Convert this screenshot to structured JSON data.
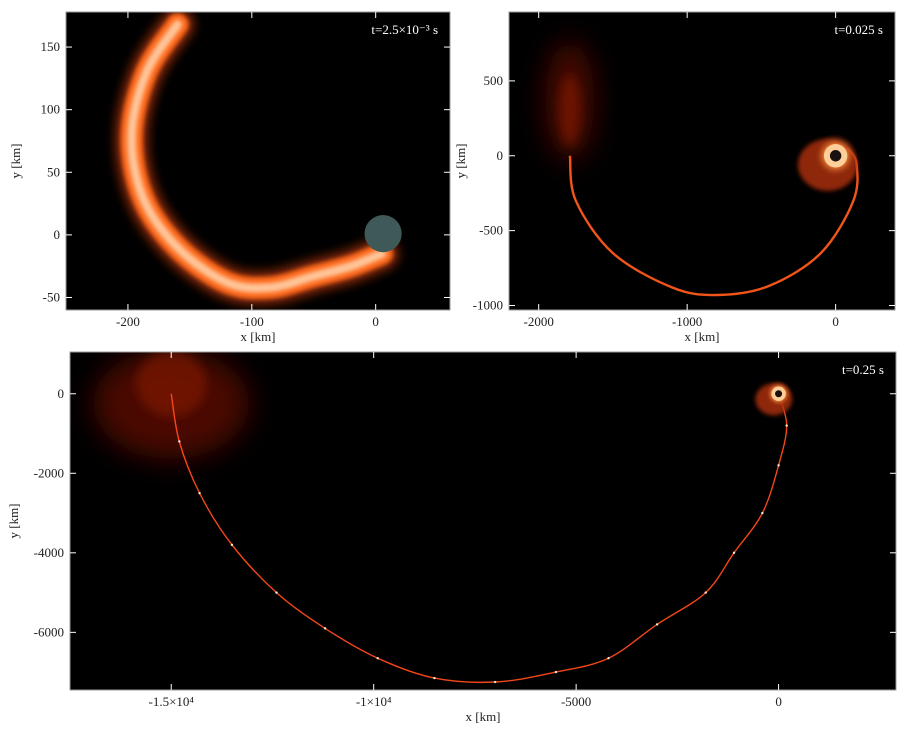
{
  "chart_data": [
    {
      "type": "heatmap",
      "panel": "top-left",
      "annotation": "t=2.5×10⁻³ s",
      "xlabel": "x [km]",
      "ylabel": "y [km]",
      "xlim": [
        -250,
        60
      ],
      "ylim": [
        -60,
        178
      ],
      "x_ticks": [
        -200,
        -100,
        0
      ],
      "x_tick_labels": [
        "-200",
        "-100",
        "0"
      ],
      "y_ticks": [
        -50,
        0,
        50,
        100,
        150
      ],
      "y_tick_labels": [
        "-50",
        "0",
        "50",
        "100",
        "150"
      ],
      "black_hole": {
        "x": 6,
        "y": 1,
        "radius_km": 15,
        "color": "#3f5858"
      },
      "stream_path": [
        [
          -160,
          168
        ],
        [
          -185,
          130
        ],
        [
          -197,
          80
        ],
        [
          -188,
          30
        ],
        [
          -160,
          -10
        ],
        [
          -120,
          -38
        ],
        [
          -85,
          -42
        ],
        [
          -50,
          -33
        ],
        [
          -20,
          -25
        ],
        [
          5,
          -15
        ]
      ],
      "stream_color": "#ff6a1a",
      "grid": false
    },
    {
      "type": "heatmap",
      "panel": "top-right",
      "annotation": "t=0.025 s",
      "xlabel": "x [km]",
      "ylabel": "y [km]",
      "xlim": [
        -2200,
        400
      ],
      "ylim": [
        -1030,
        960
      ],
      "x_ticks": [
        -2000,
        -1000,
        0
      ],
      "x_tick_labels": [
        "-2000",
        "-1000",
        "0"
      ],
      "y_ticks": [
        -1000,
        -500,
        0,
        500
      ],
      "y_tick_labels": [
        "-1000",
        "-500",
        "0",
        "500"
      ],
      "black_hole": {
        "x": 0,
        "y": 0
      },
      "stream_path": [
        [
          -1790,
          0
        ],
        [
          -1750,
          -300
        ],
        [
          -1500,
          -650
        ],
        [
          -1100,
          -880
        ],
        [
          -800,
          -930
        ],
        [
          -450,
          -870
        ],
        [
          -100,
          -650
        ],
        [
          120,
          -300
        ],
        [
          140,
          -50
        ],
        [
          80,
          50
        ]
      ],
      "stream_color": "#ff5a1a",
      "grid": false
    },
    {
      "type": "heatmap",
      "panel": "bottom",
      "annotation": "t=0.25 s",
      "xlabel": "x [km]",
      "ylabel": "y [km]",
      "xlim": [
        -17500,
        2900
      ],
      "ylim": [
        -7450,
        1050
      ],
      "x_ticks": [
        -15000,
        -10000,
        -5000,
        0
      ],
      "x_tick_labels": [
        "-1.5×10⁴",
        "-1×10⁴",
        "-5000",
        "0"
      ],
      "y_ticks": [
        -6000,
        -4000,
        -2000,
        0
      ],
      "y_tick_labels": [
        "-6000",
        "-4000",
        "-2000",
        "0"
      ],
      "black_hole": {
        "x": 0,
        "y": 0
      },
      "stream_path": [
        [
          -15000,
          0
        ],
        [
          -14800,
          -1200
        ],
        [
          -14300,
          -2500
        ],
        [
          -13500,
          -3800
        ],
        [
          -12400,
          -5000
        ],
        [
          -11200,
          -5900
        ],
        [
          -9900,
          -6650
        ],
        [
          -8500,
          -7150
        ],
        [
          -7000,
          -7250
        ],
        [
          -5500,
          -7000
        ],
        [
          -4200,
          -6650
        ],
        [
          -3000,
          -5800
        ],
        [
          -1800,
          -5000
        ],
        [
          -1100,
          -4000
        ],
        [
          -400,
          -3000
        ],
        [
          0,
          -1800
        ],
        [
          200,
          -800
        ],
        [
          0,
          0
        ]
      ],
      "stream_color": "#ff4a1a",
      "grid": false
    }
  ]
}
